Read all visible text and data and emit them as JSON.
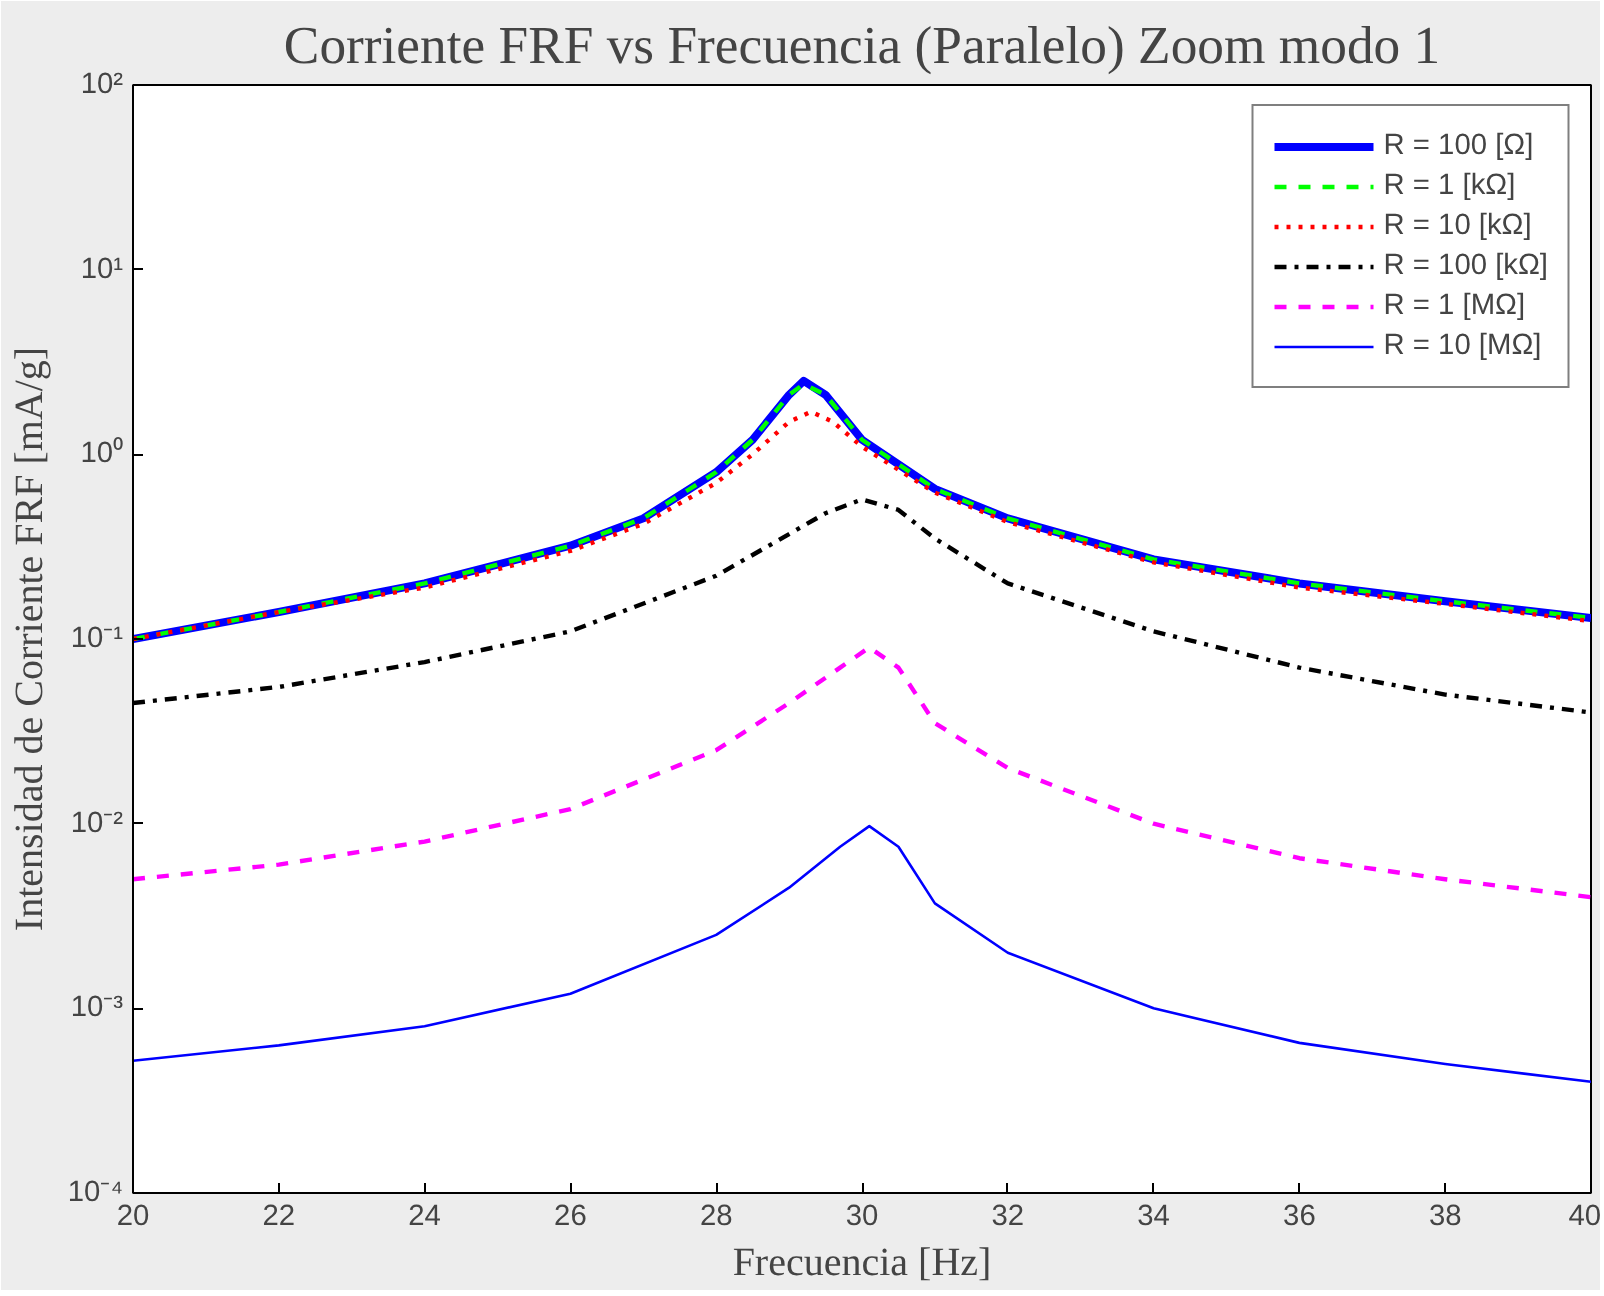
{
  "chart_data": {
    "type": "line",
    "title": "Corriente FRF vs Frecuencia (Paralelo) Zoom modo 1",
    "xlabel": "Frecuencia [Hz]",
    "ylabel": "Intensidad de Corriente FRF [mA/g]",
    "log": "y",
    "grid": false,
    "legend": "top right",
    "xlim": [
      20,
      40
    ],
    "xticks": [
      20,
      22,
      24,
      26,
      28,
      30,
      32,
      34,
      36,
      38,
      40
    ],
    "ylim": [
      0.0001,
      100
    ],
    "yticks": [
      {
        "value": 0.0001,
        "label": "10⁻⁴"
      },
      {
        "value": 0.001,
        "label": "10⁻³"
      },
      {
        "value": 0.01,
        "label": "10⁻²"
      },
      {
        "value": 0.1,
        "label": "10⁻¹"
      },
      {
        "value": 1,
        "label": "10⁰"
      },
      {
        "value": 10,
        "label": "10¹"
      },
      {
        "value": 100,
        "label": "10²"
      }
    ],
    "series": [
      {
        "name": "R = 100 [Ω]",
        "color": "#0000ff",
        "line_style": "solid",
        "x": [
          20,
          22,
          24,
          26,
          27,
          28,
          28.5,
          29,
          29.2,
          29.5,
          30,
          31,
          32,
          34,
          36,
          38,
          40
        ],
        "values": [
          0.1,
          0.14,
          0.2,
          0.32,
          0.45,
          0.8,
          1.2,
          2.1,
          2.5,
          2.1,
          1.2,
          0.65,
          0.45,
          0.27,
          0.2,
          0.16,
          0.13
        ]
      },
      {
        "name": "R = 1 [kΩ]",
        "color": "#00ff00",
        "line_style": "dashed",
        "x": [
          20,
          22,
          24,
          26,
          27,
          28,
          28.5,
          29,
          29.2,
          29.5,
          30,
          31,
          32,
          34,
          36,
          38,
          40
        ],
        "values": [
          0.1,
          0.14,
          0.2,
          0.32,
          0.45,
          0.8,
          1.2,
          2.1,
          2.4,
          2.1,
          1.2,
          0.65,
          0.45,
          0.27,
          0.2,
          0.16,
          0.13
        ]
      },
      {
        "name": "R = 10 [kΩ]",
        "color": "#ff0000",
        "line_style": "dotted",
        "x": [
          20,
          22,
          24,
          26,
          27,
          28,
          28.5,
          29,
          29.3,
          29.6,
          30,
          31,
          32,
          34,
          36,
          38,
          40
        ],
        "values": [
          0.1,
          0.14,
          0.19,
          0.3,
          0.42,
          0.7,
          1.0,
          1.5,
          1.7,
          1.5,
          1.1,
          0.62,
          0.43,
          0.26,
          0.19,
          0.155,
          0.125
        ]
      },
      {
        "name": "R = 100 [kΩ]",
        "color": "#000000",
        "line_style": "dashdot",
        "x": [
          20,
          22,
          24,
          26,
          28,
          29,
          29.5,
          30,
          30.5,
          31,
          32,
          34,
          36,
          38,
          40
        ],
        "values": [
          0.045,
          0.055,
          0.075,
          0.11,
          0.22,
          0.37,
          0.48,
          0.57,
          0.5,
          0.35,
          0.2,
          0.11,
          0.07,
          0.05,
          0.04
        ]
      },
      {
        "name": "R = 1 [MΩ]",
        "color": "#ff00ff",
        "line_style": "dashed",
        "x": [
          20,
          22,
          24,
          26,
          28,
          29,
          29.7,
          30.1,
          30.5,
          31,
          32,
          34,
          36,
          38,
          40
        ],
        "values": [
          0.005,
          0.006,
          0.008,
          0.012,
          0.025,
          0.045,
          0.07,
          0.09,
          0.07,
          0.035,
          0.02,
          0.01,
          0.0065,
          0.005,
          0.004
        ]
      },
      {
        "name": "R = 10 [MΩ]",
        "color": "#0000ff",
        "line_style": "solid",
        "x": [
          20,
          22,
          24,
          26,
          28,
          29,
          29.7,
          30.1,
          30.5,
          31,
          32,
          34,
          36,
          38,
          40
        ],
        "values": [
          0.00052,
          0.00063,
          0.0008,
          0.0012,
          0.0025,
          0.0045,
          0.0075,
          0.0097,
          0.0075,
          0.0037,
          0.002,
          0.001,
          0.00065,
          0.0005,
          0.0004
        ]
      }
    ]
  }
}
